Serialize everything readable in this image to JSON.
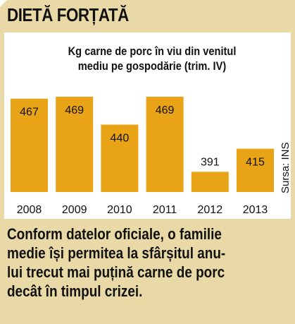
{
  "header": {
    "title": "DIETĂ FORȚATĂ"
  },
  "chart_data": {
    "type": "bar",
    "title_lines": [
      "Kg carne de porc în viu din venitul",
      "mediu pe gospodărie (trim. IV)"
    ],
    "categories": [
      "2008",
      "2009",
      "2010",
      "2011",
      "2012",
      "2013"
    ],
    "values": [
      467,
      469,
      440,
      469,
      391,
      415
    ],
    "data_labels": [
      "467",
      "469",
      "440",
      "469",
      "391",
      "415"
    ],
    "ylim": [
      370,
      480
    ],
    "bar_color": "#e8a317",
    "grid": false,
    "source": "Sursa: INS"
  },
  "caption": {
    "lines": [
      "Conform datelor oficiale, o familie",
      "medie își permitea la sfârșitul anu-",
      "lui trecut mai puțină carne de porc",
      "decât în timpul crizei."
    ]
  }
}
